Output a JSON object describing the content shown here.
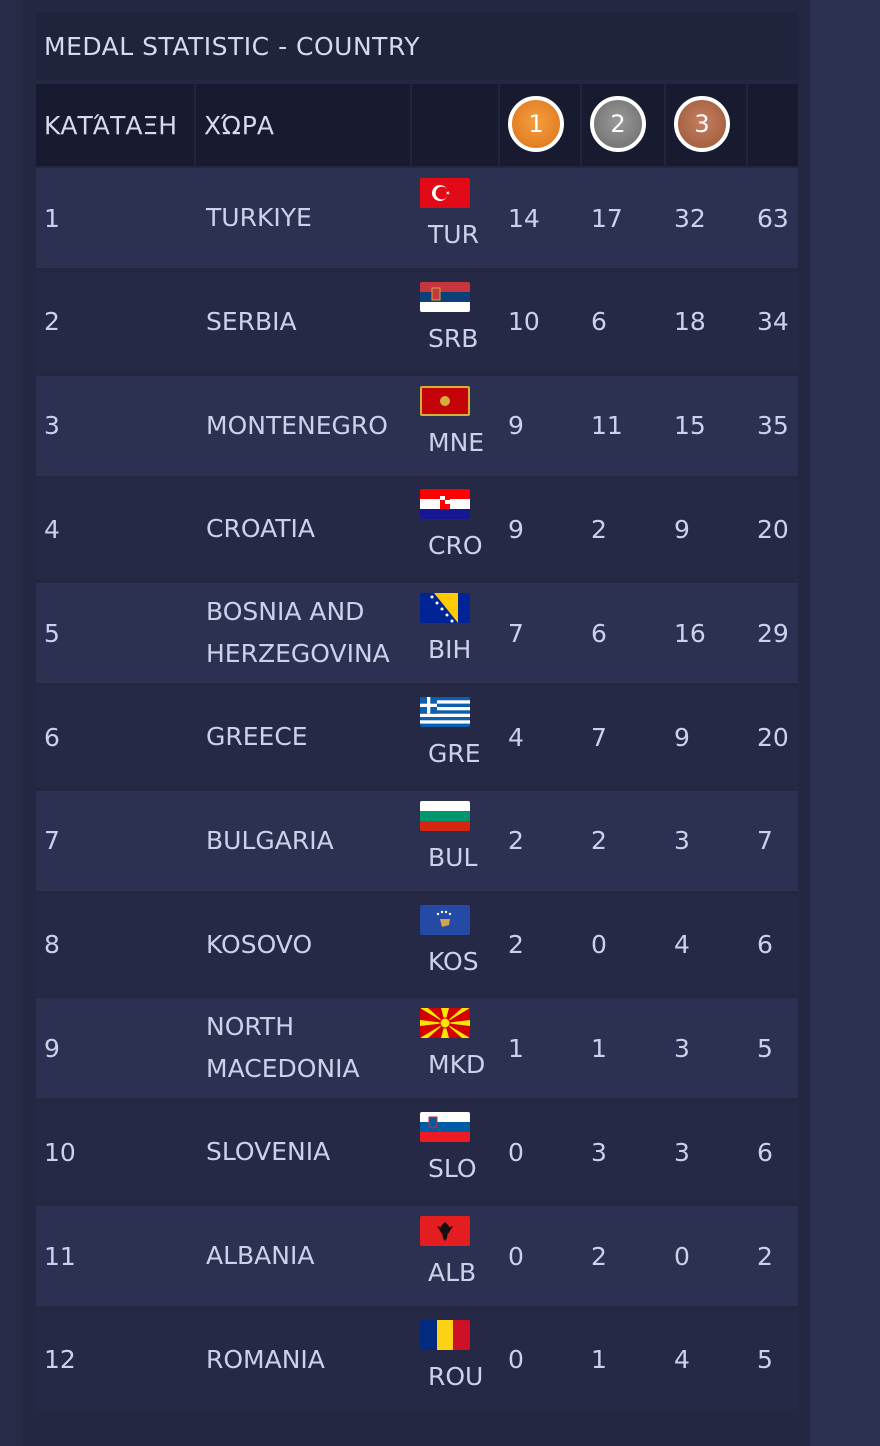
{
  "table": {
    "title": "MEDAL STATISTIC - COUNTRY",
    "headers": {
      "rank": "ΚΑΤΆΤΑΞΗ",
      "country": "ΧΏΡΑ",
      "gold": "1",
      "silver": "2",
      "bronze": "3"
    },
    "rows": [
      {
        "rank": "1",
        "name": "TURKIYE",
        "code": "TUR",
        "gold": "14",
        "silver": "17",
        "bronze": "32",
        "total": "63",
        "flag": "turkey-flag-icon"
      },
      {
        "rank": "2",
        "name": "SERBIA",
        "code": "SRB",
        "gold": "10",
        "silver": "6",
        "bronze": "18",
        "total": "34",
        "flag": "serbia-flag-icon"
      },
      {
        "rank": "3",
        "name": "MONTENEGRO",
        "code": "MNE",
        "gold": "9",
        "silver": "11",
        "bronze": "15",
        "total": "35",
        "flag": "montenegro-flag-icon"
      },
      {
        "rank": "4",
        "name": "CROATIA",
        "code": "CRO",
        "gold": "9",
        "silver": "2",
        "bronze": "9",
        "total": "20",
        "flag": "croatia-flag-icon"
      },
      {
        "rank": "5",
        "name": "BOSNIA AND HERZEGOVINA",
        "code": "BIH",
        "gold": "7",
        "silver": "6",
        "bronze": "16",
        "total": "29",
        "flag": "bosnia-flag-icon"
      },
      {
        "rank": "6",
        "name": "GREECE",
        "code": "GRE",
        "gold": "4",
        "silver": "7",
        "bronze": "9",
        "total": "20",
        "flag": "greece-flag-icon"
      },
      {
        "rank": "7",
        "name": "BULGARIA",
        "code": "BUL",
        "gold": "2",
        "silver": "2",
        "bronze": "3",
        "total": "7",
        "flag": "bulgaria-flag-icon"
      },
      {
        "rank": "8",
        "name": "KOSOVO",
        "code": "KOS",
        "gold": "2",
        "silver": "0",
        "bronze": "4",
        "total": "6",
        "flag": "kosovo-flag-icon"
      },
      {
        "rank": "9",
        "name": "NORTH MACEDONIA",
        "code": "MKD",
        "gold": "1",
        "silver": "1",
        "bronze": "3",
        "total": "5",
        "flag": "north-macedonia-flag-icon"
      },
      {
        "rank": "10",
        "name": "SLOVENIA",
        "code": "SLO",
        "gold": "0",
        "silver": "3",
        "bronze": "3",
        "total": "6",
        "flag": "slovenia-flag-icon"
      },
      {
        "rank": "11",
        "name": "ALBANIA",
        "code": "ALB",
        "gold": "0",
        "silver": "2",
        "bronze": "0",
        "total": "2",
        "flag": "albania-flag-icon"
      },
      {
        "rank": "12",
        "name": "ROMANIA",
        "code": "ROU",
        "gold": "0",
        "silver": "1",
        "bronze": "4",
        "total": "5",
        "flag": "romania-flag-icon"
      }
    ]
  },
  "colors": {
    "background": "#272b47",
    "row_light": "#2c3152",
    "row_dark": "#252945",
    "header": "#181b30",
    "gold": "#e88a2a",
    "silver": "#808080",
    "bronze": "#b06a4a"
  }
}
